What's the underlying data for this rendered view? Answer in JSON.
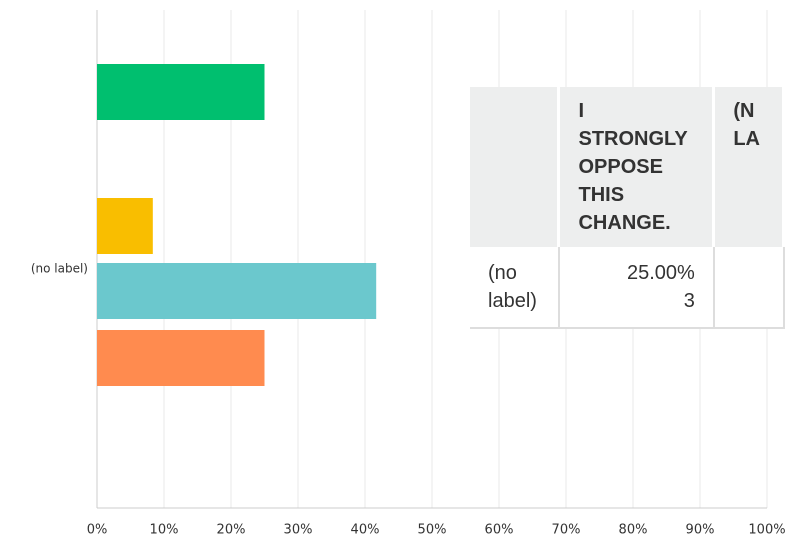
{
  "chart_data": {
    "type": "bar",
    "orientation": "horizontal",
    "categories": [
      "(no label)"
    ],
    "series": [
      {
        "color": "#00bf6f",
        "values": [
          25
        ]
      },
      {
        "color": "#f9be00",
        "values": [
          8.33
        ]
      },
      {
        "color": "#6bc8cd",
        "values": [
          41.67
        ]
      },
      {
        "color": "#ff8b4f",
        "values": [
          25
        ]
      }
    ],
    "xlim": [
      0,
      100
    ],
    "xticks": [
      {
        "value": 0,
        "label": "0%"
      },
      {
        "value": 10,
        "label": "10%"
      },
      {
        "value": 20,
        "label": "20%"
      },
      {
        "value": 30,
        "label": "30%"
      },
      {
        "value": 40,
        "label": "40%"
      },
      {
        "value": 50,
        "label": "50%"
      },
      {
        "value": 60,
        "label": "60%"
      },
      {
        "value": 70,
        "label": "70%"
      },
      {
        "value": 80,
        "label": "80%"
      },
      {
        "value": 90,
        "label": "90%"
      },
      {
        "value": 100,
        "label": "100%"
      }
    ],
    "grid": true
  },
  "table": {
    "headers": [
      "I STRONGLY OPPOSE THIS CHANGE.",
      "(N LA"
    ],
    "rows": [
      [
        "(no label)",
        "25.00%",
        "3"
      ]
    ]
  }
}
